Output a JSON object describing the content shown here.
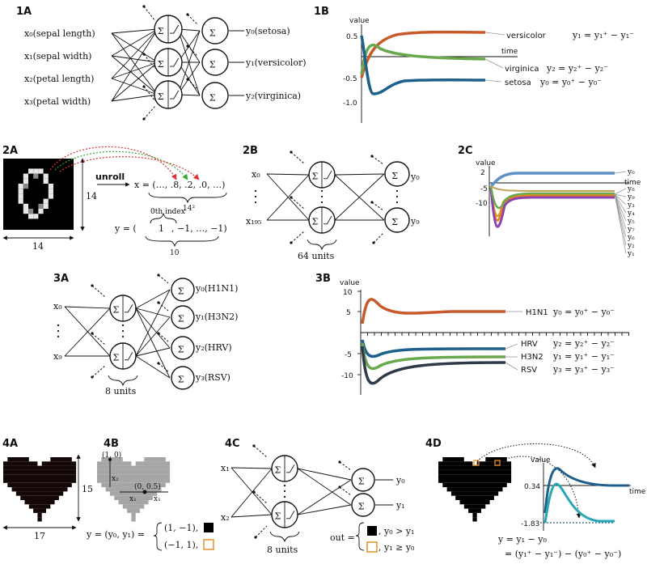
{
  "panels": {
    "p1a": "1A",
    "p1b": "1B",
    "p2a": "2A",
    "p2b": "2B",
    "p2c": "2C",
    "p3a": "3A",
    "p3b": "3B",
    "p4a": "4A",
    "p4b": "4B",
    "p4c": "4C",
    "p4d": "4D"
  },
  "iris": {
    "inputs": [
      "x₀(sepal length)",
      "x₁(sepal width)",
      "x₂(petal length)",
      "x₃(petal width)"
    ],
    "outputs": [
      "y₀(setosa)",
      "y₁(versicolor)",
      "y₂(virginica)"
    ]
  },
  "chart_1b": {
    "axis_value": "value",
    "axis_time": "time",
    "ticks": [
      "0.5",
      "-0.5",
      "-1.0"
    ],
    "labels": [
      {
        "name": "versicolor",
        "eq": "y₁ = y₁⁺ − y₁⁻"
      },
      {
        "name": "virginica",
        "eq": "y₂ = y₂⁺ − y₂⁻"
      },
      {
        "name": "setosa",
        "eq": "y₀ = y₀⁺ − y₀⁻"
      }
    ],
    "colors": {
      "versicolor": "#c8592a",
      "virginica": "#6aa84f",
      "setosa": "#1f5f8b"
    }
  },
  "mnist": {
    "unroll": "unroll",
    "x_vec": "x = (…, .8, .2, .0, …)",
    "x_len": "14²",
    "side_right": "14",
    "side_bottom": "14",
    "index_label": "0th index",
    "y_vec_left": "y = (",
    "y_one": "1",
    "y_rest": ", −1, …, −1)",
    "y_len": "10"
  },
  "net_2b": {
    "x_top": "x₀",
    "x_bot": "x₁₉₅",
    "y_top": "y₀",
    "y_bot": "y₉",
    "units": "64 units"
  },
  "chart_2c": {
    "axis_value": "value",
    "axis_time": "time",
    "ticks": [
      "2",
      "-5",
      "-10"
    ],
    "labels": [
      "y₀",
      "y₈",
      "y₉",
      "y₃",
      "y₄",
      "y₅",
      "y₇",
      "y₆",
      "y₂",
      "y₁"
    ]
  },
  "net_3a": {
    "x_top": "x₀",
    "x_bot": "x₉",
    "units": "8 units",
    "outputs": [
      "y₀(H1N1)",
      "y₁(H3N2)",
      "y₂(HRV)",
      "y₃(RSV)"
    ]
  },
  "chart_3b": {
    "axis_value": "value",
    "ticks": [
      "10",
      "5",
      "-5",
      "-10"
    ],
    "labels": [
      {
        "name": "H1N1",
        "eq": "y₀ = y₀⁺ − y₀⁻"
      },
      {
        "name": "HRV",
        "eq": "y₂ = y₂⁺ − y₂⁻"
      },
      {
        "name": "H3N2",
        "eq": "y₁ = y₁⁺ − y₁⁻"
      },
      {
        "name": "RSV",
        "eq": "y₃ = y₃⁺ − y₃⁻"
      }
    ],
    "colors": {
      "H1N1": "#c8592a",
      "HRV": "#1f5f8b",
      "H3N2": "#6aa84f",
      "RSV": "#2e3a48"
    }
  },
  "heart": {
    "side": "15",
    "bottom": "17",
    "corner": "(1, 0)",
    "center": "(0, 0.5)",
    "x2": "x₂",
    "x1a": "x₁",
    "x1b": "x₁",
    "y_def": "y = (y₀, y₁) =",
    "case1": "(1, −1),",
    "case2": "(−1, 1),"
  },
  "net_4c": {
    "x_top": "x₁",
    "x_bot": "x₂",
    "y_top": "y₀",
    "y_bot": "y₁",
    "units": "8 units",
    "out_label": "out =",
    "case1": ", y₀ > y₁",
    "case2": ", y₁ ≥ y₀"
  },
  "chart_4d": {
    "axis_value": "value",
    "axis_time": "time",
    "ticks": [
      "0.34",
      "-1.83"
    ],
    "eq1": "y = y₁ − y₀",
    "eq2": "= (y₁⁺ − y₁⁻) − (y₀⁺ − y₀⁻)",
    "colors": {
      "upper": "#1f5f8b",
      "lower": "#2aa7b5"
    }
  }
}
